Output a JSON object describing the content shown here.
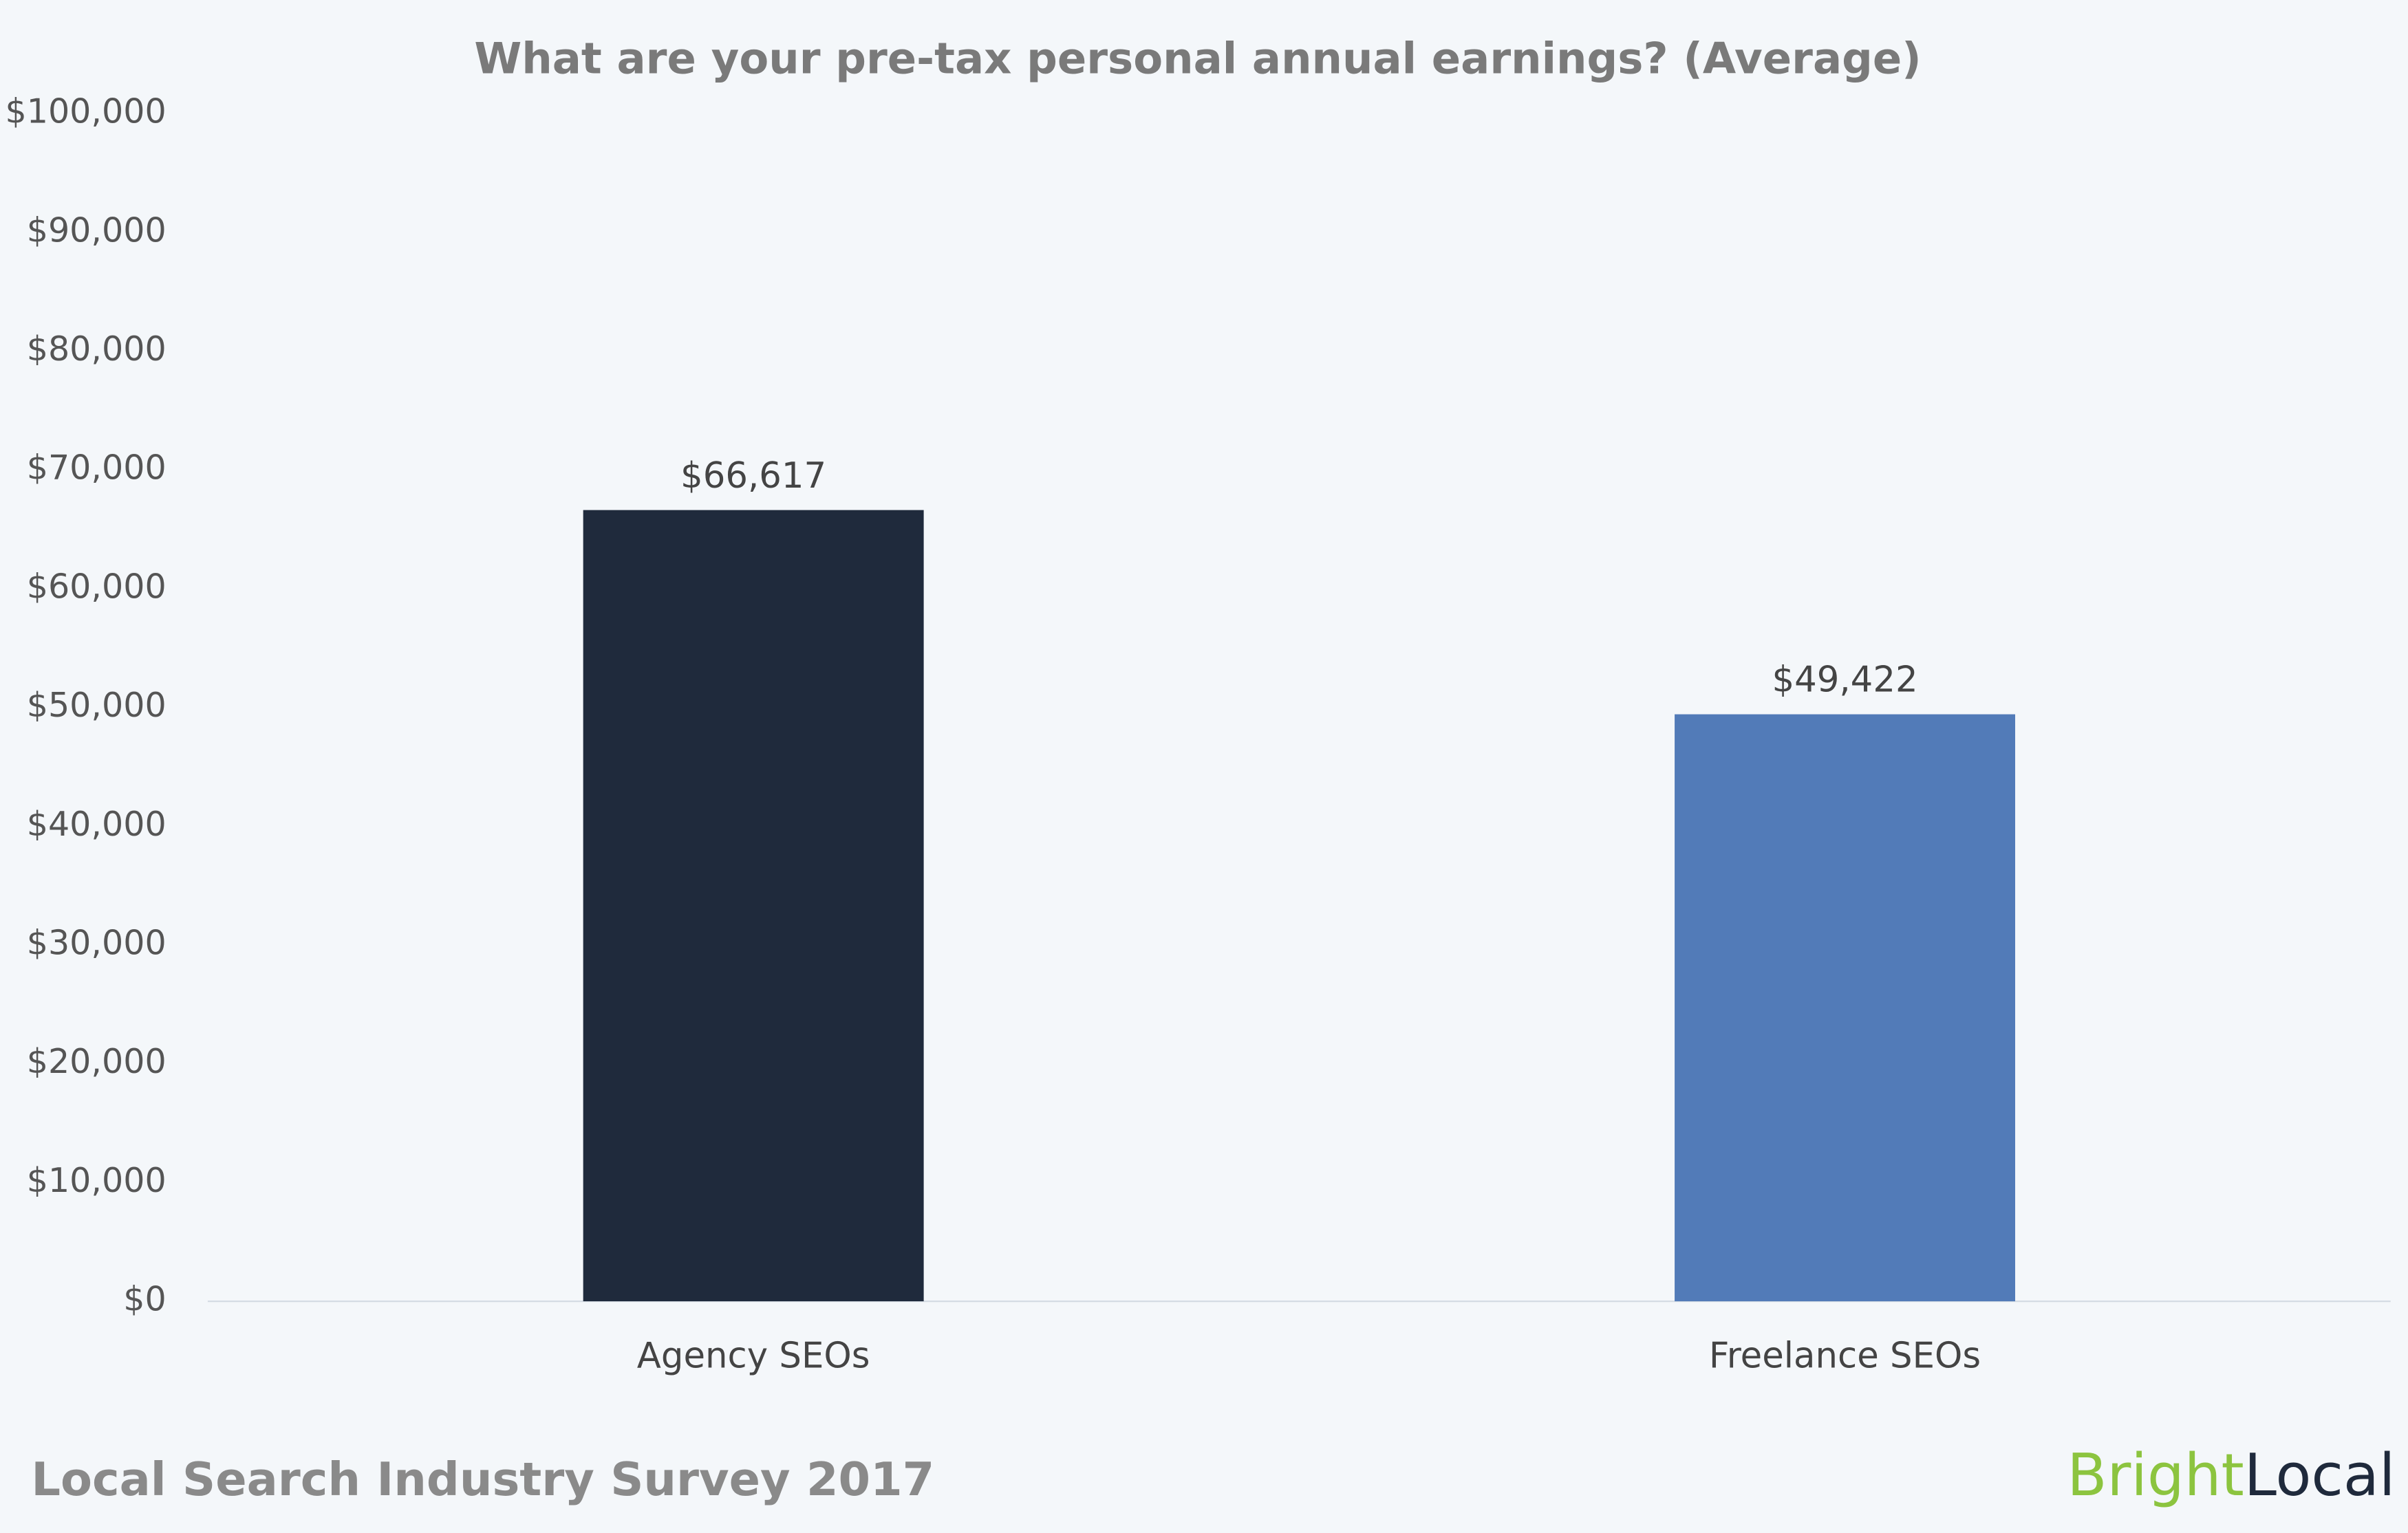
{
  "chart_data": {
    "type": "bar",
    "title": "What are your pre-tax personal annual earnings? (Average)",
    "categories": [
      "Agency SEOs",
      "Freelance SEOs"
    ],
    "values": [
      66617,
      49422
    ],
    "value_labels": [
      "$66,617",
      "$49,422"
    ],
    "colors": [
      "#1f2a3c",
      "#527bb8"
    ],
    "ylim": [
      0,
      100000
    ],
    "yticks": [
      {
        "value": 0,
        "label": "$0"
      },
      {
        "value": 10000,
        "label": "$10,000"
      },
      {
        "value": 20000,
        "label": "$20,000"
      },
      {
        "value": 30000,
        "label": "$30,000"
      },
      {
        "value": 40000,
        "label": "$40,000"
      },
      {
        "value": 50000,
        "label": "$50,000"
      },
      {
        "value": 60000,
        "label": "$60,000"
      },
      {
        "value": 70000,
        "label": "$70,000"
      },
      {
        "value": 80000,
        "label": "$80,000"
      },
      {
        "value": 90000,
        "label": "$90,000"
      },
      {
        "value": 100000,
        "label": "$100,000"
      }
    ],
    "grid": false
  },
  "footer": {
    "source": "Local Search Industry Survey 2017",
    "brand_first": "Bright",
    "brand_second": "Local"
  }
}
